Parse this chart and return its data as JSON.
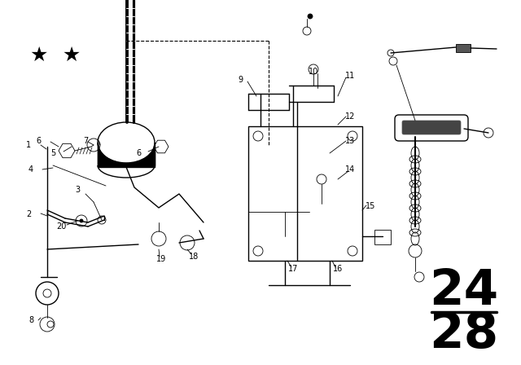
{
  "background_color": "#ffffff",
  "page_num_fontsize": 42,
  "lw_main": 1.0,
  "lw_thin": 0.6,
  "lw_thick": 1.8,
  "figsize": [
    6.4,
    4.48
  ],
  "dpi": 100,
  "xlim": [
    0,
    640
  ],
  "ylim": [
    0,
    448
  ]
}
